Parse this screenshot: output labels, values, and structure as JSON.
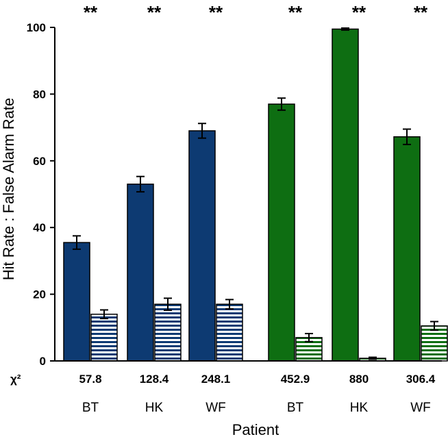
{
  "chart_data": {
    "type": "bar",
    "title": "",
    "xlabel": "Patient",
    "ylabel": "Hit Rate : False Alarm Rate",
    "ylim": [
      0,
      100
    ],
    "yticks": [
      "0",
      "20",
      "40",
      "60",
      "80",
      "100"
    ],
    "chi_label": "χ²",
    "groups": [
      {
        "patient": "BT",
        "chi": "57.8",
        "hit": 35.5,
        "hit_err": 2.0,
        "fa": 14.0,
        "fa_err": 1.3,
        "color": "#0d3a72",
        "sig": "**"
      },
      {
        "patient": "HK",
        "chi": "128.4",
        "hit": 53.0,
        "hit_err": 2.3,
        "fa": 17.0,
        "fa_err": 1.8,
        "color": "#0d3a72",
        "sig": "**"
      },
      {
        "patient": "WF",
        "chi": "248.1",
        "hit": 69.0,
        "hit_err": 2.2,
        "fa": 17.0,
        "fa_err": 1.4,
        "color": "#0d3a72",
        "sig": "**"
      },
      {
        "patient": "BT",
        "chi": "452.9",
        "hit": 77.0,
        "hit_err": 1.8,
        "fa": 7.0,
        "fa_err": 1.2,
        "color": "#0e6e12",
        "sig": "**"
      },
      {
        "patient": "HK",
        "chi": "880",
        "hit": 99.5,
        "hit_err": 0.3,
        "fa": 0.8,
        "fa_err": 0.3,
        "color": "#0e6e12",
        "sig": "**"
      },
      {
        "patient": "WF",
        "chi": "306.4",
        "hit": 67.2,
        "hit_err": 2.3,
        "fa": 10.5,
        "fa_err": 1.3,
        "color": "#0e6e12",
        "sig": "**"
      }
    ]
  }
}
